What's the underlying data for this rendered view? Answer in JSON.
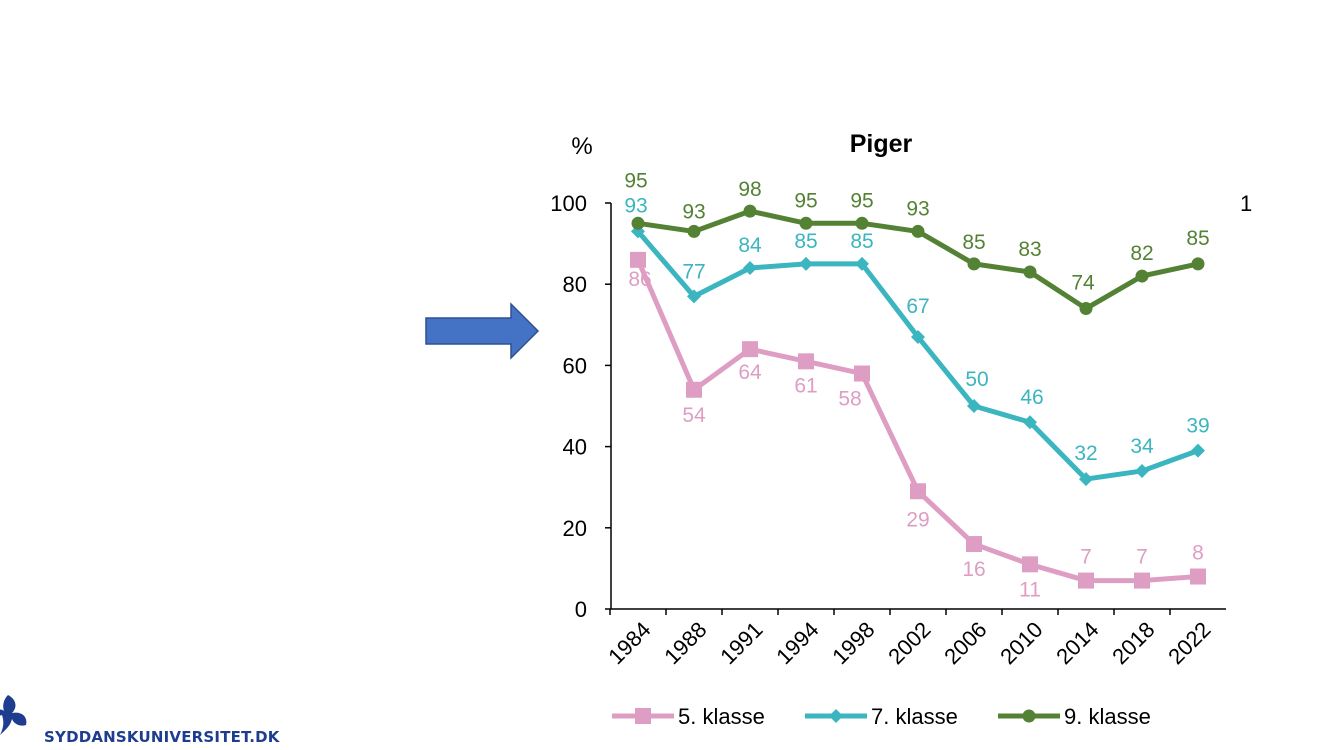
{
  "logo": {
    "text": "SYDDANSKUNIVERSITET.DK"
  },
  "arrow": {
    "color": "#4472C4"
  },
  "stray_label": "1",
  "chart_data": {
    "type": "line",
    "title": "Piger",
    "ylabel": "%",
    "xlabel": "",
    "ylim": [
      0,
      100
    ],
    "yticks": [
      0,
      20,
      40,
      60,
      80,
      100
    ],
    "categories": [
      "1984",
      "1988",
      "1991",
      "1994",
      "1998",
      "2002",
      "2006",
      "2010",
      "2014",
      "2018",
      "2022"
    ],
    "legend_position": "bottom",
    "grid": false,
    "series": [
      {
        "name": "5. klasse",
        "color": "#DE9EC4",
        "marker": "square",
        "values": [
          86,
          54,
          64,
          61,
          58,
          29,
          16,
          11,
          7,
          7,
          8
        ]
      },
      {
        "name": "7. klasse",
        "color": "#3BB5BF",
        "marker": "diamond",
        "values": [
          93,
          77,
          84,
          85,
          85,
          67,
          50,
          46,
          32,
          34,
          39
        ]
      },
      {
        "name": "9. klasse",
        "color": "#548235",
        "marker": "circle",
        "values": [
          95,
          93,
          98,
          95,
          95,
          93,
          85,
          83,
          74,
          82,
          85
        ]
      }
    ]
  }
}
